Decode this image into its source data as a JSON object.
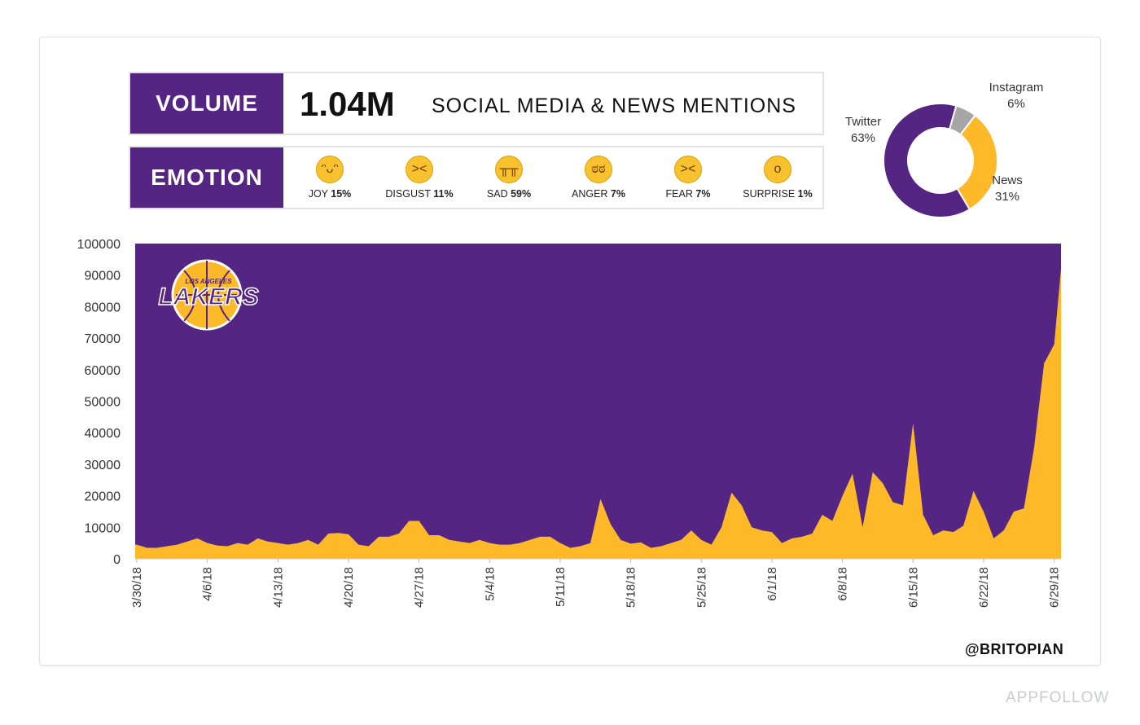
{
  "volume": {
    "label": "VOLUME",
    "value": "1.04M",
    "description": "SOCIAL MEDIA & NEWS MENTIONS"
  },
  "emotion": {
    "label": "EMOTION",
    "items": [
      {
        "name": "JOY",
        "pct": "15%",
        "icon": "grinning-face-icon",
        "glyph": "ᵔᴗᵔ"
      },
      {
        "name": "DISGUST",
        "pct": "11%",
        "icon": "confounded-face-icon",
        "glyph": "><"
      },
      {
        "name": "SAD",
        "pct": "59%",
        "icon": "crying-face-icon",
        "glyph": "╥╥"
      },
      {
        "name": "ANGER",
        "pct": "7%",
        "icon": "steam-face-icon",
        "glyph": "ಠಠ"
      },
      {
        "name": "FEAR",
        "pct": "7%",
        "icon": "persevering-face-icon",
        "glyph": "><"
      },
      {
        "name": "SURPRISE",
        "pct": "1%",
        "icon": "surprised-face-icon",
        "glyph": "o"
      }
    ]
  },
  "donut": {
    "slices": [
      {
        "label": "Twitter",
        "pct": "63%",
        "value": 63,
        "color": "#552583"
      },
      {
        "label": "News",
        "pct": "31%",
        "value": 31,
        "color": "#FDB927"
      },
      {
        "label": "Instagram",
        "pct": "6%",
        "value": 6,
        "color": "#a6a6a6"
      }
    ]
  },
  "logo": {
    "text": "LAKERS",
    "top_text": "LOS ANGELES"
  },
  "credit": "@BRITOPIAN",
  "watermark": "APPFOLLOW",
  "chart_data": {
    "type": "area",
    "ylim": [
      0,
      100000
    ],
    "yticks": [
      0,
      10000,
      20000,
      30000,
      40000,
      50000,
      60000,
      70000,
      80000,
      90000,
      100000
    ],
    "xtick_labels": [
      "3/30/18",
      "4/6/18",
      "4/13/18",
      "4/20/18",
      "4/27/18",
      "5/4/18",
      "5/11/18",
      "5/18/18",
      "5/25/18",
      "6/1/18",
      "6/8/18",
      "6/15/18",
      "6/22/18",
      "6/29/18"
    ],
    "x_start": "3/30/18",
    "background_color": "#552583",
    "series": [
      {
        "color": "#FDB927",
        "values": [
          4500,
          3500,
          3500,
          4000,
          4500,
          5500,
          6500,
          5000,
          4200,
          4000,
          5000,
          4500,
          6500,
          5500,
          5000,
          4500,
          5000,
          6000,
          4500,
          8000,
          8200,
          7800,
          4500,
          4000,
          7000,
          7000,
          8000,
          12000,
          12000,
          7500,
          7500,
          6000,
          5500,
          5000,
          6000,
          5000,
          4500,
          4500,
          5000,
          6000,
          7000,
          7000,
          5000,
          3500,
          4000,
          5000,
          19000,
          11000,
          6000,
          4800,
          5200,
          3500,
          4000,
          5000,
          6000,
          9000,
          6000,
          4500,
          10000,
          21000,
          17000,
          10000,
          9000,
          8500,
          5000,
          6500,
          7000,
          8000,
          14000,
          12000,
          20000,
          27000,
          10000,
          27500,
          24000,
          18000,
          17000,
          43000,
          14000,
          7500,
          9000,
          8500,
          10500,
          21500,
          15000,
          6500,
          9000,
          15000,
          16000,
          35000,
          62000,
          68000,
          92000
        ]
      }
    ]
  }
}
